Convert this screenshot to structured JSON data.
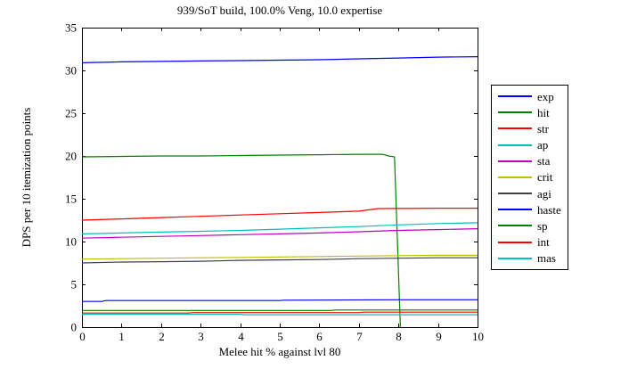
{
  "figure": {
    "background": "#FFFFFF",
    "axis_color": "#000000",
    "text_color": "#000000"
  },
  "chart_data": {
    "type": "line",
    "title": "939/SoT build, 100.0% Veng, 10.0 expertise",
    "xlabel": "Melee hit % against lvl 80",
    "ylabel": "DPS per 10 itemization points",
    "xlim": [
      0,
      10
    ],
    "ylim": [
      0,
      35
    ],
    "xticks": [
      0,
      1,
      2,
      3,
      4,
      5,
      6,
      7,
      8,
      9,
      10
    ],
    "yticks": [
      0,
      5,
      10,
      15,
      20,
      25,
      30,
      35
    ],
    "grid": false,
    "legend_position": "outside-right",
    "series": [
      {
        "name": "exp",
        "color": "#0000FF",
        "x": [
          0,
          1,
          2,
          3,
          4,
          5,
          6,
          7,
          8,
          9,
          10
        ],
        "y": [
          30.9,
          31.0,
          31.05,
          31.1,
          31.15,
          31.2,
          31.25,
          31.35,
          31.45,
          31.55,
          31.6
        ]
      },
      {
        "name": "hit",
        "color": "#008000",
        "x": [
          0,
          1,
          2,
          3,
          4,
          5,
          6,
          7,
          7.6,
          7.75,
          7.9,
          8.05
        ],
        "y": [
          19.9,
          19.95,
          20.0,
          20.0,
          20.05,
          20.1,
          20.15,
          20.2,
          20.2,
          20.0,
          19.9,
          0
        ]
      },
      {
        "name": "str",
        "color": "#FF0000",
        "x": [
          0,
          1,
          2,
          3,
          4,
          5,
          6,
          7,
          7.5,
          9,
          10
        ],
        "y": [
          12.5,
          12.65,
          12.8,
          12.95,
          13.1,
          13.25,
          13.4,
          13.55,
          13.85,
          13.9,
          13.9
        ]
      },
      {
        "name": "ap",
        "color": "#00BFBF",
        "x": [
          0,
          1,
          2,
          3,
          4,
          5,
          6,
          7,
          8,
          9,
          10
        ],
        "y": [
          10.9,
          11.0,
          11.1,
          11.2,
          11.3,
          11.45,
          11.6,
          11.75,
          11.95,
          12.1,
          12.2
        ]
      },
      {
        "name": "sta",
        "color": "#BF00BF",
        "x": [
          0,
          1,
          2,
          3,
          4,
          5,
          6,
          7,
          8,
          9,
          10
        ],
        "y": [
          10.4,
          10.5,
          10.6,
          10.7,
          10.8,
          10.9,
          11.0,
          11.15,
          11.3,
          11.4,
          11.5
        ]
      },
      {
        "name": "crit",
        "color": "#BFBF00",
        "x": [
          0,
          1,
          2,
          3,
          4,
          5,
          6,
          7,
          8,
          9,
          10
        ],
        "y": [
          7.95,
          8.0,
          8.05,
          8.1,
          8.15,
          8.2,
          8.25,
          8.3,
          8.35,
          8.4,
          8.4
        ]
      },
      {
        "name": "agi",
        "color": "#404040",
        "x": [
          0,
          1,
          2,
          3,
          4,
          5,
          6,
          7,
          8,
          9,
          10
        ],
        "y": [
          7.5,
          7.6,
          7.65,
          7.7,
          7.8,
          7.85,
          7.9,
          8.0,
          8.05,
          8.1,
          8.1
        ]
      },
      {
        "name": "haste",
        "color": "#0000FF",
        "x": [
          0,
          0.5,
          0.6,
          5,
          5.1,
          8,
          10
        ],
        "y": [
          3.0,
          3.0,
          3.1,
          3.1,
          3.15,
          3.2,
          3.2
        ]
      },
      {
        "name": "sp",
        "color": "#008000",
        "x": [
          0,
          6.3,
          6.4,
          10
        ],
        "y": [
          1.95,
          1.95,
          2.0,
          2.0
        ]
      },
      {
        "name": "int",
        "color": "#FF0000",
        "x": [
          0,
          2.7,
          2.8,
          7,
          7.1,
          10
        ],
        "y": [
          1.65,
          1.65,
          1.7,
          1.7,
          1.75,
          1.75
        ]
      },
      {
        "name": "mas",
        "color": "#00BFBF",
        "x": [
          0,
          4.0,
          4.1,
          10
        ],
        "y": [
          1.5,
          1.5,
          1.45,
          1.45
        ]
      }
    ]
  }
}
